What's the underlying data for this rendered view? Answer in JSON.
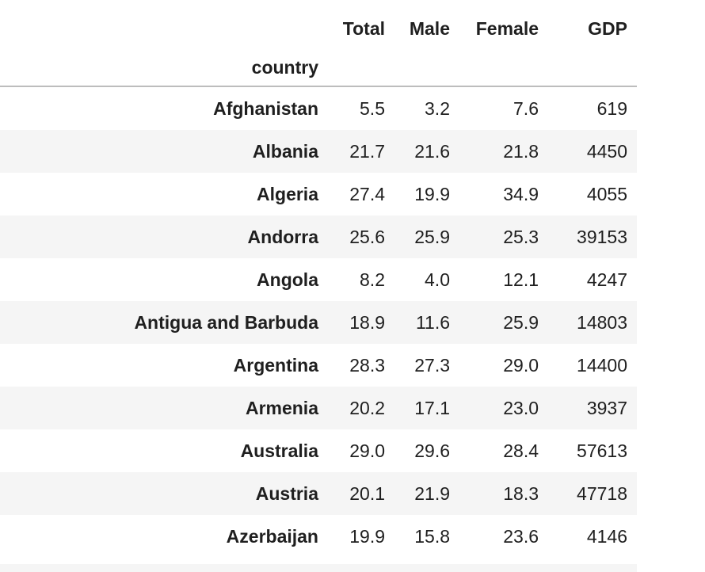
{
  "table": {
    "columns": [
      "Total",
      "Male",
      "Female",
      "GDP"
    ],
    "index_name": "country",
    "rows": [
      {
        "country": "Afghanistan",
        "values": [
          "5.5",
          "3.2",
          "7.6",
          "619"
        ]
      },
      {
        "country": "Albania",
        "values": [
          "21.7",
          "21.6",
          "21.8",
          "4450"
        ]
      },
      {
        "country": "Algeria",
        "values": [
          "27.4",
          "19.9",
          "34.9",
          "4055"
        ]
      },
      {
        "country": "Andorra",
        "values": [
          "25.6",
          "25.9",
          "25.3",
          "39153"
        ]
      },
      {
        "country": "Angola",
        "values": [
          "8.2",
          "4.0",
          "12.1",
          "4247"
        ]
      },
      {
        "country": "Antigua and Barbuda",
        "values": [
          "18.9",
          "11.6",
          "25.9",
          "14803"
        ]
      },
      {
        "country": "Argentina",
        "values": [
          "28.3",
          "27.3",
          "29.0",
          "14400"
        ]
      },
      {
        "country": "Armenia",
        "values": [
          "20.2",
          "17.1",
          "23.0",
          "3937"
        ]
      },
      {
        "country": "Australia",
        "values": [
          "29.0",
          "29.6",
          "28.4",
          "57613"
        ]
      },
      {
        "country": "Austria",
        "values": [
          "20.1",
          "21.9",
          "18.3",
          "47718"
        ]
      },
      {
        "country": "Azerbaijan",
        "values": [
          "19.9",
          "15.8",
          "23.6",
          "4146"
        ]
      }
    ]
  },
  "colors": {
    "stripe": "#f5f5f5",
    "header_rule": "#bdbdbd",
    "text": "#1f1f1f"
  }
}
